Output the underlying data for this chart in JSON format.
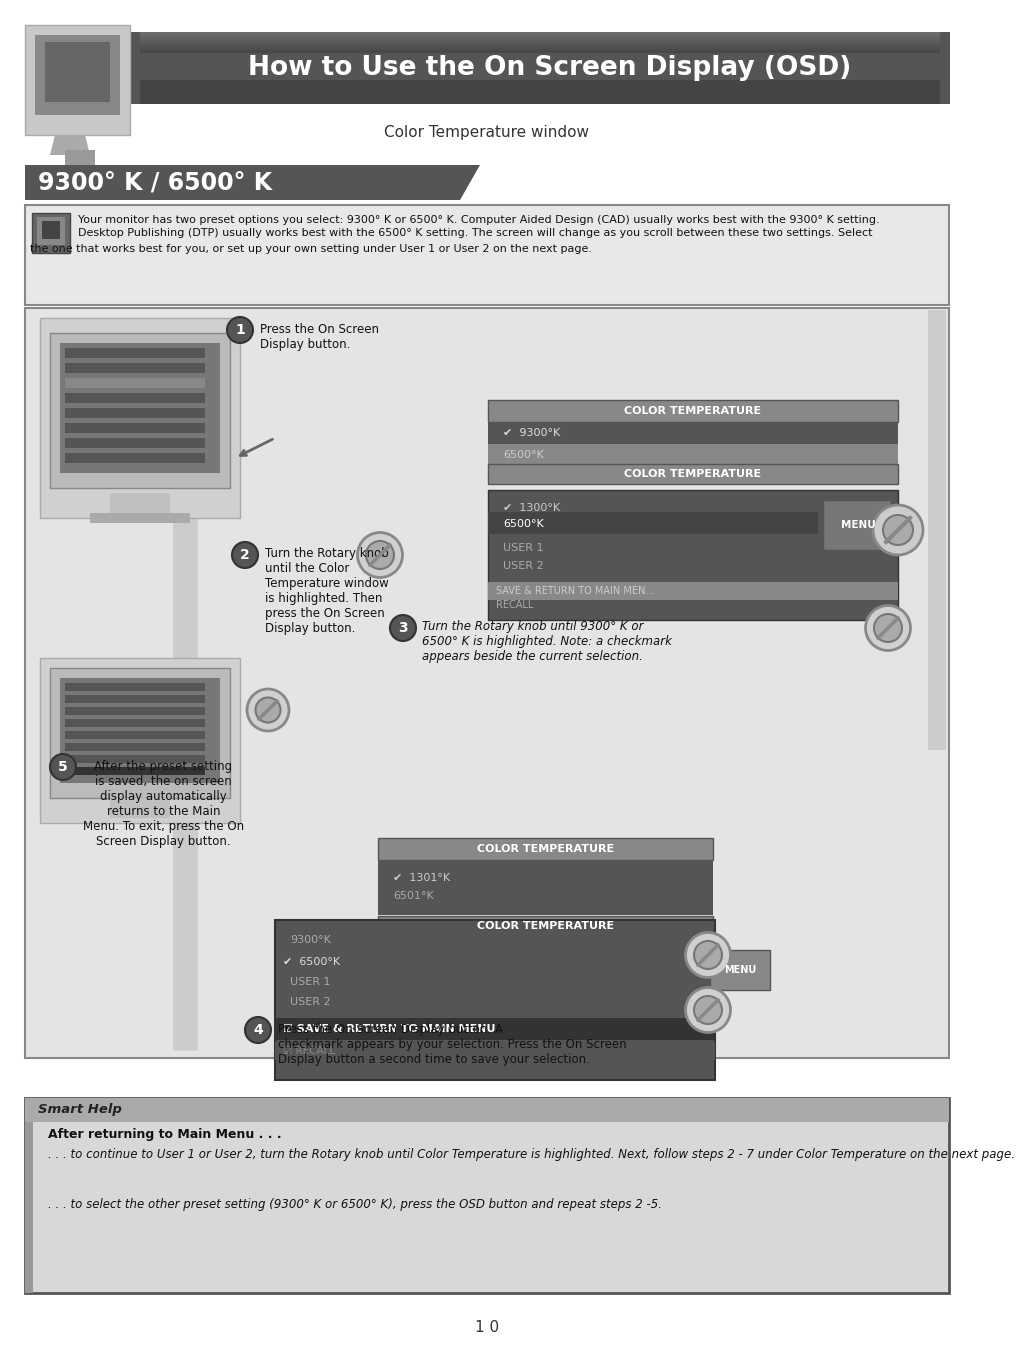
{
  "title": "How to Use the On Screen Display (OSD)",
  "subtitle": "Color Temperature window",
  "section_title": "9300° K / 6500° K",
  "intro_text1": "Your monitor has two preset options you select: 9300° K or 6500° K. Computer Aided Design (CAD) usually works best with the 9300° K setting.",
  "intro_text2": "Desktop Publishing (DTP) usually works best with the 6500° K setting. The screen will change as you scroll between these two settings. Select",
  "intro_text3": "the one that works best for you, or set up your own setting under User 1 or User 2 on the next page.",
  "step1_text": "Press the On Screen\nDisplay button.",
  "step2_text": "Turn the Rotary knob\nuntil the Color\nTemperature window\nis highlighted. Then\npress the On Screen\nDisplay button.",
  "step3_text": "Turn the Rotary knob until 9300° K or\n6500° K is highlighted. Note: a checkmark\nappears beside the current selection.",
  "step4_text": "Press the On Screen Display button. A\ncheckmark appears by your selection. Press the On Screen\nDisplay button a second time to save your selection.",
  "step5_text": "After the preset setting\nis saved, the on screen\ndisplay automatically\nreturns to the Main\nMenu. To exit, press the On\nScreen Display button.",
  "smart_help_title": "Smart Help",
  "smart_help_bold": "After returning to Main Menu . . .",
  "smart_help_line1": ". . . to continue to User 1 or User 2, turn the Rotary knob until Color Temperature is highlighted. Next, follow steps 2 - 7 under Color Temperature on the next page.",
  "smart_help_line2": ". . . to select the other preset setting (9300° K or 6500° K), press the OSD button and repeat steps 2 -5.",
  "page_number": "1 0",
  "bg_color": "#ffffff"
}
